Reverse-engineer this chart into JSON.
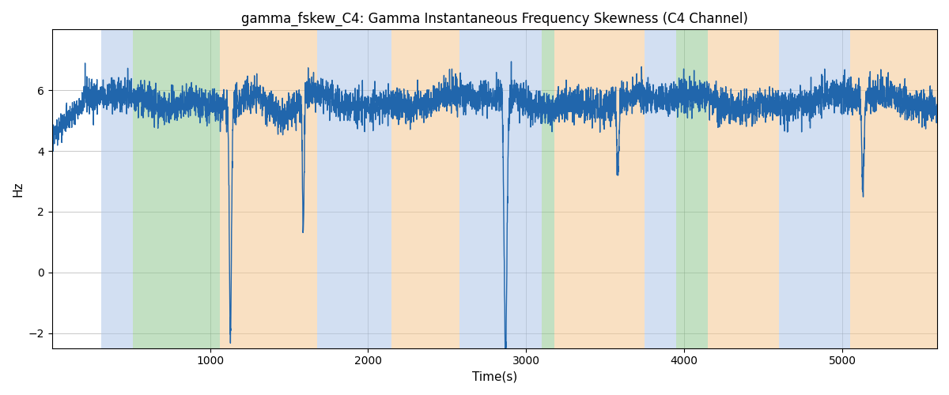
{
  "title": "gamma_fskew_C4: Gamma Instantaneous Frequency Skewness (C4 Channel)",
  "xlabel": "Time(s)",
  "ylabel": "Hz",
  "xlim": [
    0,
    5600
  ],
  "ylim": [
    -2.5,
    8.0
  ],
  "line_color": "#2166ac",
  "line_width": 1.0,
  "background_regions": [
    {
      "xmin": 310,
      "xmax": 510,
      "color": "#aec6e8",
      "alpha": 0.55
    },
    {
      "xmin": 510,
      "xmax": 1060,
      "color": "#90c890",
      "alpha": 0.55
    },
    {
      "xmin": 1060,
      "xmax": 1680,
      "color": "#f5c890",
      "alpha": 0.55
    },
    {
      "xmin": 1680,
      "xmax": 1900,
      "color": "#aec6e8",
      "alpha": 0.55
    },
    {
      "xmin": 1900,
      "xmax": 2150,
      "color": "#aec6e8",
      "alpha": 0.55
    },
    {
      "xmin": 2150,
      "xmax": 2580,
      "color": "#f5c890",
      "alpha": 0.55
    },
    {
      "xmin": 2580,
      "xmax": 2720,
      "color": "#aec6e8",
      "alpha": 0.55
    },
    {
      "xmin": 2720,
      "xmax": 3100,
      "color": "#aec6e8",
      "alpha": 0.55
    },
    {
      "xmin": 3100,
      "xmax": 3180,
      "color": "#90c890",
      "alpha": 0.55
    },
    {
      "xmin": 3180,
      "xmax": 3560,
      "color": "#f5c890",
      "alpha": 0.55
    },
    {
      "xmin": 3560,
      "xmax": 3750,
      "color": "#f5c890",
      "alpha": 0.55
    },
    {
      "xmin": 3750,
      "xmax": 3950,
      "color": "#aec6e8",
      "alpha": 0.55
    },
    {
      "xmin": 3950,
      "xmax": 4150,
      "color": "#90c890",
      "alpha": 0.55
    },
    {
      "xmin": 4150,
      "xmax": 4600,
      "color": "#f5c890",
      "alpha": 0.55
    },
    {
      "xmin": 4600,
      "xmax": 4830,
      "color": "#aec6e8",
      "alpha": 0.55
    },
    {
      "xmin": 4830,
      "xmax": 5050,
      "color": "#aec6e8",
      "alpha": 0.55
    },
    {
      "xmin": 5050,
      "xmax": 5600,
      "color": "#f5c890",
      "alpha": 0.55
    }
  ],
  "seed": 42,
  "n_points": 5580,
  "base_value": 5.65,
  "noise_std": 0.28,
  "yticks": [
    -2,
    0,
    2,
    4,
    6
  ],
  "xticks": [
    1000,
    2000,
    3000,
    4000,
    5000
  ],
  "title_fontsize": 12,
  "label_fontsize": 11,
  "figsize": [
    12.0,
    5.0
  ],
  "dpi": 100
}
